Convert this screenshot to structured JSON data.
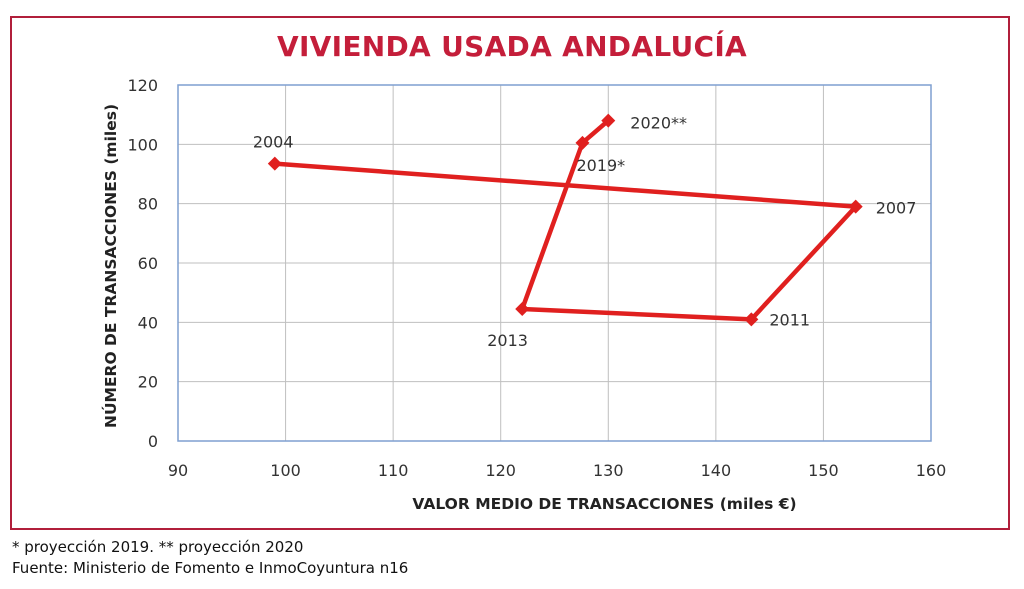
{
  "chart_data": {
    "type": "line",
    "title": "VIVIENDA USADA ANDALUCÍA",
    "xlabel": "VALOR MEDIO DE TRANSACCIONES (miles €)",
    "ylabel": "NÚMERO DE TRANSACCIONES (miles)",
    "xlim": [
      90,
      160
    ],
    "ylim": [
      0,
      120
    ],
    "xticks": [
      90,
      100,
      110,
      120,
      130,
      140,
      150,
      160
    ],
    "yticks": [
      0,
      20,
      40,
      60,
      80,
      100,
      120
    ],
    "grid": true,
    "series": [
      {
        "color": "#e0201f",
        "points": [
          {
            "label": "2004",
            "x": 99,
            "y": 93.5
          },
          {
            "label": "2007",
            "x": 153,
            "y": 79
          },
          {
            "label": "2011",
            "x": 143.3,
            "y": 41
          },
          {
            "label": "2013",
            "x": 122,
            "y": 44.5
          },
          {
            "label": "2019*",
            "x": 127.6,
            "y": 100.5
          },
          {
            "label": "2020**",
            "x": 130,
            "y": 108
          }
        ]
      }
    ]
  },
  "footnotes": {
    "projection": "* proyección 2019. ** proyección 2020",
    "source": "Fuente: Ministerio de Fomento e InmoCoyuntura n16"
  },
  "colors": {
    "frame": "#b11f3b",
    "title": "#c41e3a",
    "plot_border": "#7f9fd0",
    "grid": "#bfbfbf"
  }
}
